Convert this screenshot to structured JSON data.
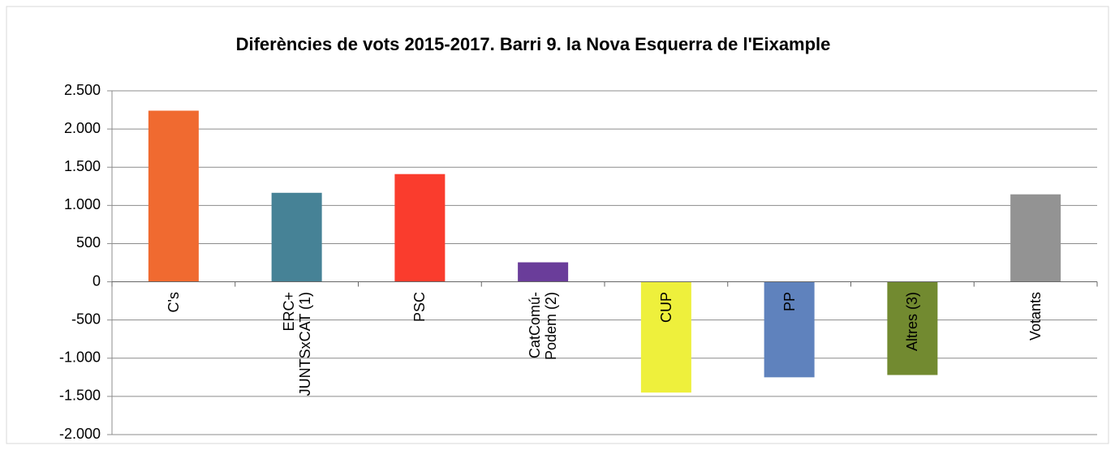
{
  "chart_data": {
    "type": "bar",
    "title": "Diferències de vots 2015-2017. Barri  9. la Nova Esquerra de l'Eixample",
    "categories": [
      "C's",
      "ERC+\nJUNTSxCAT (1)",
      "PSC",
      "CatComú-\nPodem (2)",
      "CUP",
      "PP",
      "Altres (3)",
      "Votants"
    ],
    "values": [
      2240,
      1165,
      1410,
      255,
      -1450,
      -1250,
      -1220,
      1145
    ],
    "colors": [
      "#f06a30",
      "#468296",
      "#fa3c2d",
      "#6a3d9a",
      "#eef03c",
      "#5f82bd",
      "#728a30",
      "#939393"
    ],
    "ylim": [
      -2000,
      2500
    ],
    "yticks": [
      {
        "value": -2000,
        "label": "-2.000"
      },
      {
        "value": -1500,
        "label": "-1.500"
      },
      {
        "value": -1000,
        "label": "-1.000"
      },
      -500,
      0,
      500,
      {
        "value": 1000,
        "label": "1.000"
      },
      {
        "value": 1500,
        "label": "1.500"
      },
      {
        "value": 2000,
        "label": "2.000"
      },
      {
        "value": 2500,
        "label": "2.500"
      }
    ],
    "grid": true
  }
}
